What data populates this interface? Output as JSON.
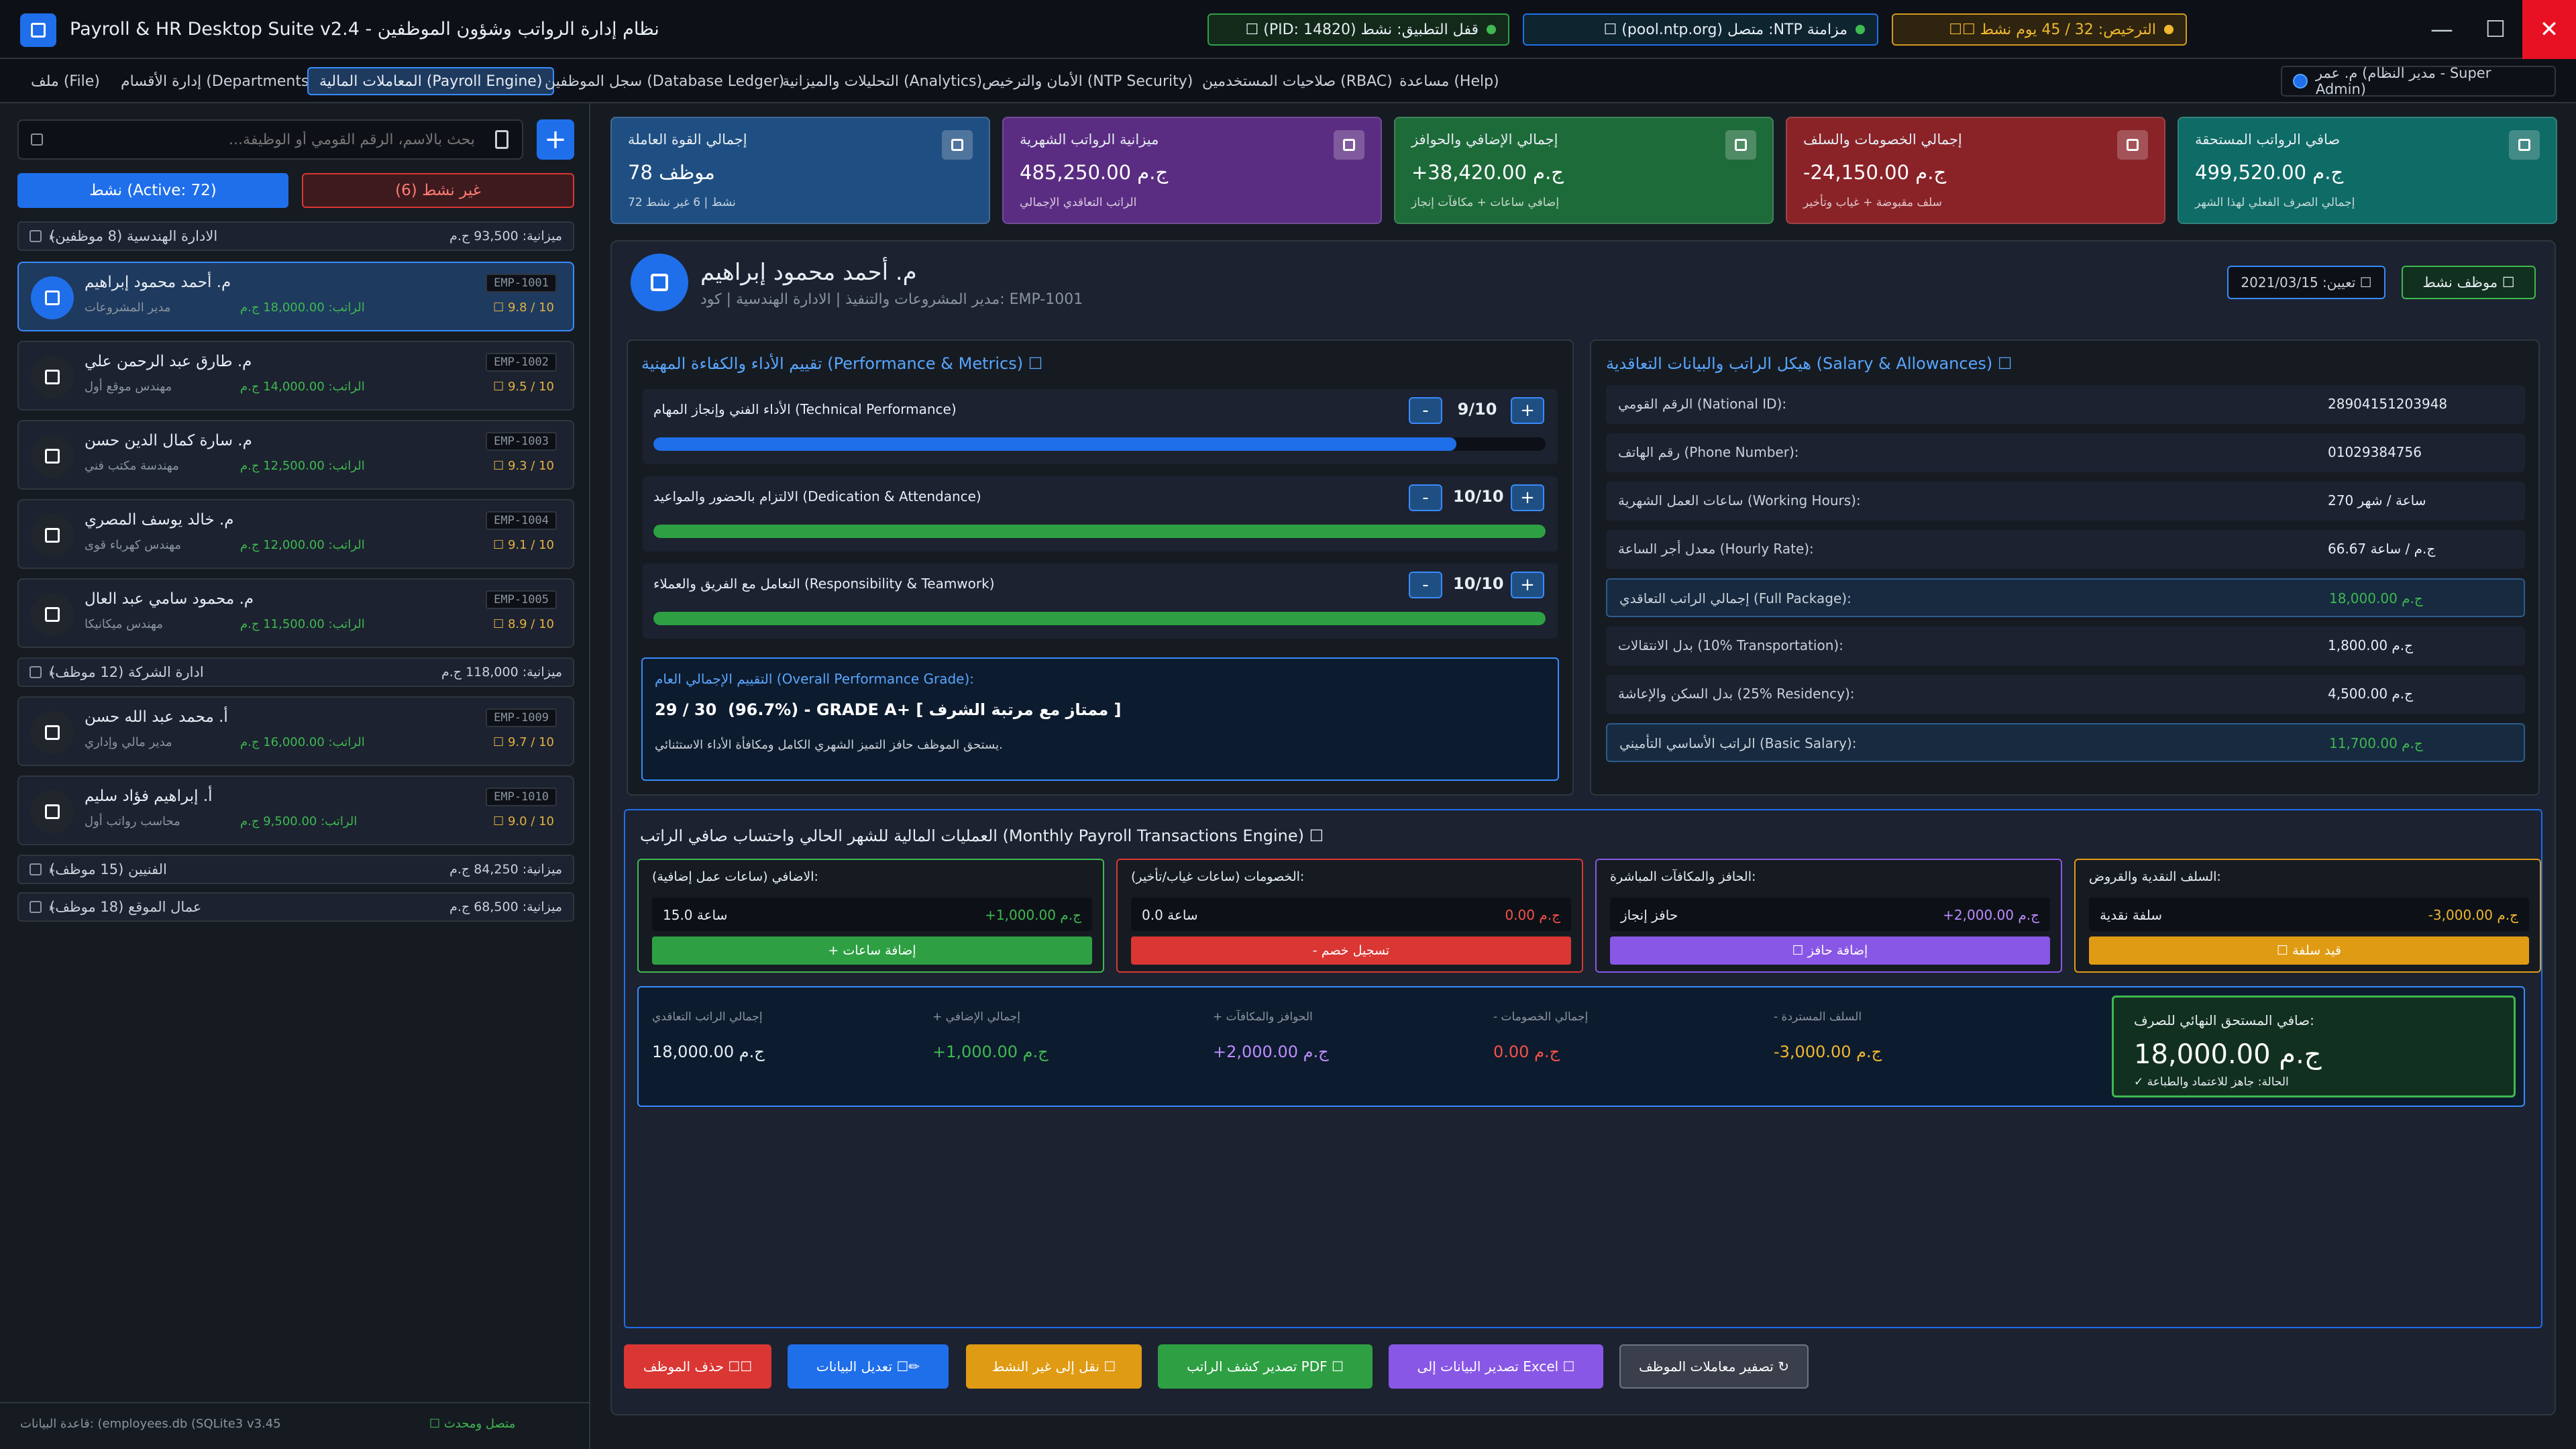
{
  "window": {
    "title": "Payroll & HR Desktop Suite v2.4 - نظام إدارة الرواتب وشؤون الموظفين",
    "status": {
      "lock": "قفل التطبيق: نشط (PID: 14820) ☐",
      "ntp": "مزامنة NTP: متصل (pool.ntp.org) ☐",
      "license": "الترخيص: 32 / 45 يوم نشط ☐☐"
    },
    "controls": {
      "minimize": "—",
      "maximize": "☐",
      "close": "✕"
    }
  },
  "menu": {
    "items": [
      {
        "label": "ملف (File)"
      },
      {
        "label": "إدارة الأقسام (Departments)"
      },
      {
        "label": "المعاملات المالية (Payroll Engine)"
      },
      {
        "label": "سجل الموظفين (Database Ledger)"
      },
      {
        "label": "التحليلات والميزانية (Analytics)"
      },
      {
        "label": "الأمان والترخيص (NTP Security)"
      },
      {
        "label": "صلاحيات المستخدمين (RBAC)"
      },
      {
        "label": "مساعدة (Help)"
      }
    ],
    "user": "م. عمر (مدير النظام - Super Admin)"
  },
  "sidebar": {
    "search_placeholder": "بحث بالاسم، الرقم القومي أو الوظيفة...",
    "add_label": "+",
    "filter_active": "نشط (Active: 72)",
    "filter_inactive": "غير نشط (6)",
    "departments": [
      {
        "title": "الادارة الهندسية (8 موظفين)",
        "budget": "ميزانية: 93,500 ج.م"
      },
      {
        "title": "ادارة الشركة (12 موظف)",
        "budget": "ميزانية: 118,000 ج.م"
      },
      {
        "title": "الفنيين (15 موظف)",
        "budget": "ميزانية: 84,250 ج.م"
      },
      {
        "title": "عمال الموقع (18 موظف)",
        "budget": "ميزانية: 68,500 ج.م"
      }
    ],
    "employees": [
      {
        "name": "م. أحمد محمود إبراهيم",
        "role": "مدير المشروعات",
        "salary": "الراتب: 18,000.00 ج.م",
        "rating": "☐ 9.8 / 10",
        "code": "EMP-1001"
      },
      {
        "name": "م. طارق عبد الرحمن علي",
        "role": "مهندس موقع أول",
        "salary": "الراتب: 14,000.00 ج.م",
        "rating": "☐ 9.5 / 10",
        "code": "EMP-1002"
      },
      {
        "name": "م. سارة كمال الدين حسن",
        "role": "مهندسة مكتب فني",
        "salary": "الراتب: 12,500.00 ج.م",
        "rating": "☐ 9.3 / 10",
        "code": "EMP-1003"
      },
      {
        "name": "م. خالد يوسف المصري",
        "role": "مهندس كهرباء قوى",
        "salary": "الراتب: 12,000.00 ج.م",
        "rating": "☐ 9.1 / 10",
        "code": "EMP-1004"
      },
      {
        "name": "م. محمود سامي عبد العال",
        "role": "مهندس ميكانيكا",
        "salary": "الراتب: 11,500.00 ج.م",
        "rating": "☐ 8.9 / 10",
        "code": "EMP-1005"
      },
      {
        "name": "أ. محمد عبد الله حسن",
        "role": "مدير مالي وإداري",
        "salary": "الراتب: 16,000.00 ج.م",
        "rating": "☐ 9.7 / 10",
        "code": "EMP-1009"
      },
      {
        "name": "أ. إبراهيم فؤاد سليم",
        "role": "محاسب رواتب أول",
        "salary": "الراتب: 9,500.00 ج.م",
        "rating": "☐ 9.0 / 10",
        "code": "EMP-1010"
      }
    ],
    "db_status": "قاعدة البيانات: (employees.db (SQLite3 v3.45",
    "db_conn": "☐ متصل ومحدث"
  },
  "kpis": [
    {
      "title": "إجمالي القوة العاملة",
      "value": "78 موظف",
      "sub": "72 نشط | 6 غير نشط",
      "color": "#1f4f82"
    },
    {
      "title": "ميزانية الرواتب الشهرية",
      "value": "485,250.00 ج.م",
      "sub": "الراتب التعاقدي الإجمالي",
      "color": "#5b2d82"
    },
    {
      "title": "إجمالي الإضافي والحوافز",
      "value": "+38,420.00 ج.م",
      "sub": "إضافي ساعات + مكافآت إنجاز",
      "color": "#1e6b3a"
    },
    {
      "title": "إجمالي الخصومات والسلف",
      "value": "-24,150.00 ج.م",
      "sub": "سلف مقبوضة + غياب وتأخير",
      "color": "#8a2328"
    },
    {
      "title": "صافي الرواتب المستحقة",
      "value": "499,520.00 ج.م",
      "sub": "إجمالي الصرف الفعلي لهذا الشهر",
      "color": "#0f6b66"
    }
  ],
  "profile": {
    "name": "م. أحمد محمود إبراهيم",
    "sub": "مدير المشروعات والتنفيذ | الادارة الهندسية | كود: EMP-1001",
    "hire": "تعيين: 2021/03/15 ☐",
    "status": "موظف نشط ☐"
  },
  "performance": {
    "title": "تقييم الأداء والكفاءة المهنية (Performance & Metrics) ☐",
    "metrics": [
      {
        "label": "الأداء الفني وإنجاز المهام (Technical Performance)",
        "value": "9/10",
        "fraction": 0.9,
        "color": "#1f6feb"
      },
      {
        "label": "الالتزام بالحضور والمواعيد (Dedication & Attendance)",
        "value": "10/10",
        "fraction": 1.0,
        "color": "#2ea043"
      },
      {
        "label": "التعامل مع الفريق والعملاء (Responsibility & Teamwork)",
        "value": "10/10",
        "fraction": 1.0,
        "color": "#2ea043"
      }
    ],
    "minus": "-",
    "plus": "+",
    "grade_title": "التقييم الإجمالي العام (Overall Performance Grade):",
    "grade_value": "29 / 30  (96.7%) - GRADE A+ [ ممتاز مع مرتبة الشرف ]",
    "grade_note": "يستحق الموظف حافز التميز الشهري الكامل ومكافأة الأداء الاستثنائي."
  },
  "salary": {
    "title": "هيكل الراتب والبيانات التعاقدية (Salary & Allowances) ☐",
    "rows": [
      {
        "label": "الرقم القومي (National ID):",
        "value": "28904151203948",
        "green": false,
        "hl": false
      },
      {
        "label": "رقم الهاتف (Phone Number):",
        "value": "01029384756",
        "green": false,
        "hl": false
      },
      {
        "label": "ساعات العمل الشهرية (Working Hours):",
        "value": "270 ساعة / شهر",
        "green": false,
        "hl": false
      },
      {
        "label": "معدل أجر الساعة (Hourly Rate):",
        "value": "66.67 ج.م / ساعة",
        "green": false,
        "hl": false
      },
      {
        "label": "إجمالي الراتب التعاقدي (Full Package):",
        "value": "18,000.00 ج.م",
        "green": true,
        "hl": true
      },
      {
        "label": "بدل الانتقالات (10% Transportation):",
        "value": "1,800.00 ج.م",
        "green": false,
        "hl": false
      },
      {
        "label": "بدل السكن والإعاشة (25% Residency):",
        "value": "4,500.00 ج.م",
        "green": false,
        "hl": false
      },
      {
        "label": "الراتب الأساسي التأميني (Basic Salary):",
        "value": "11,700.00 ج.م",
        "green": true,
        "hl": true
      }
    ]
  },
  "payroll": {
    "title": "العمليات المالية للشهر الحالي واحتساب صافي الراتب (Monthly Payroll Transactions Engine) ☐",
    "cards": [
      {
        "title": "الاضافي (ساعات عمل إضافية):",
        "input": "15.0 ساعة",
        "amount": "+1,000.00 ج.م",
        "amount_color": "#3fb950",
        "button": "+ إضافة ساعات",
        "btn_color": "#2ea043",
        "border": "#3fb950"
      },
      {
        "title": "الخصومات (ساعات غياب/تأخير):",
        "input": "0.0 ساعة",
        "amount": "0.00 ج.م",
        "amount_color": "#f85149",
        "button": "- تسجيل خصم",
        "btn_color": "#da3633",
        "border": "#da3633"
      },
      {
        "title": "الحافز والمكافآت المباشرة:",
        "input": "حافز إنجاز",
        "amount": "+2,000.00 ج.م",
        "amount_color": "#bc8cff",
        "button": "☐ إضافة حافز",
        "btn_color": "#8957e5",
        "border": "#8957e5"
      },
      {
        "title": "السلف النقدية والقروض:",
        "input": "سلفة نقدية",
        "amount": "-3,000.00 ج.م",
        "amount_color": "#f0b72f",
        "button": "☐ قيد سلفة",
        "btn_color": "#e09b14",
        "border": "#e09b14"
      }
    ],
    "summary": [
      {
        "label": "إجمالي الراتب التعاقدي",
        "value": "18,000.00 ج.م",
        "color": "#e6edf3"
      },
      {
        "label": "+ إجمالي الإضافي",
        "value": "+1,000.00 ج.م",
        "color": "#3fb950"
      },
      {
        "label": "+ الحوافز والمكافآت",
        "value": "+2,000.00 ج.م",
        "color": "#bc8cff"
      },
      {
        "label": "- إجمالي الخصومات",
        "value": "0.00 ج.م",
        "color": "#f85149"
      },
      {
        "label": "- السلف المستردة",
        "value": "-3,000.00 ج.م",
        "color": "#f0b72f"
      }
    ],
    "net_label": "صافي المستحق النهائي للصرف:",
    "net_value": "18,000.00 ج.م",
    "net_status": "✓ الحالة: جاهز للاعتماد والطباعة"
  },
  "actions": [
    {
      "label": "حذف الموظف ☐☐",
      "color": "#da3633"
    },
    {
      "label": "تعديل البيانات ☐✏",
      "color": "#1f6feb"
    },
    {
      "label": "نقل إلى غير النشط ☐",
      "color": "#e09b14"
    },
    {
      "label": "تصدير كشف الراتب PDF ☐",
      "color": "#2ea043"
    },
    {
      "label": "تصدير البيانات إلى Excel ☐",
      "color": "#8957e5"
    },
    {
      "label": "تصفير معاملات الموظف ↻",
      "color": "#3a3f4b"
    }
  ]
}
